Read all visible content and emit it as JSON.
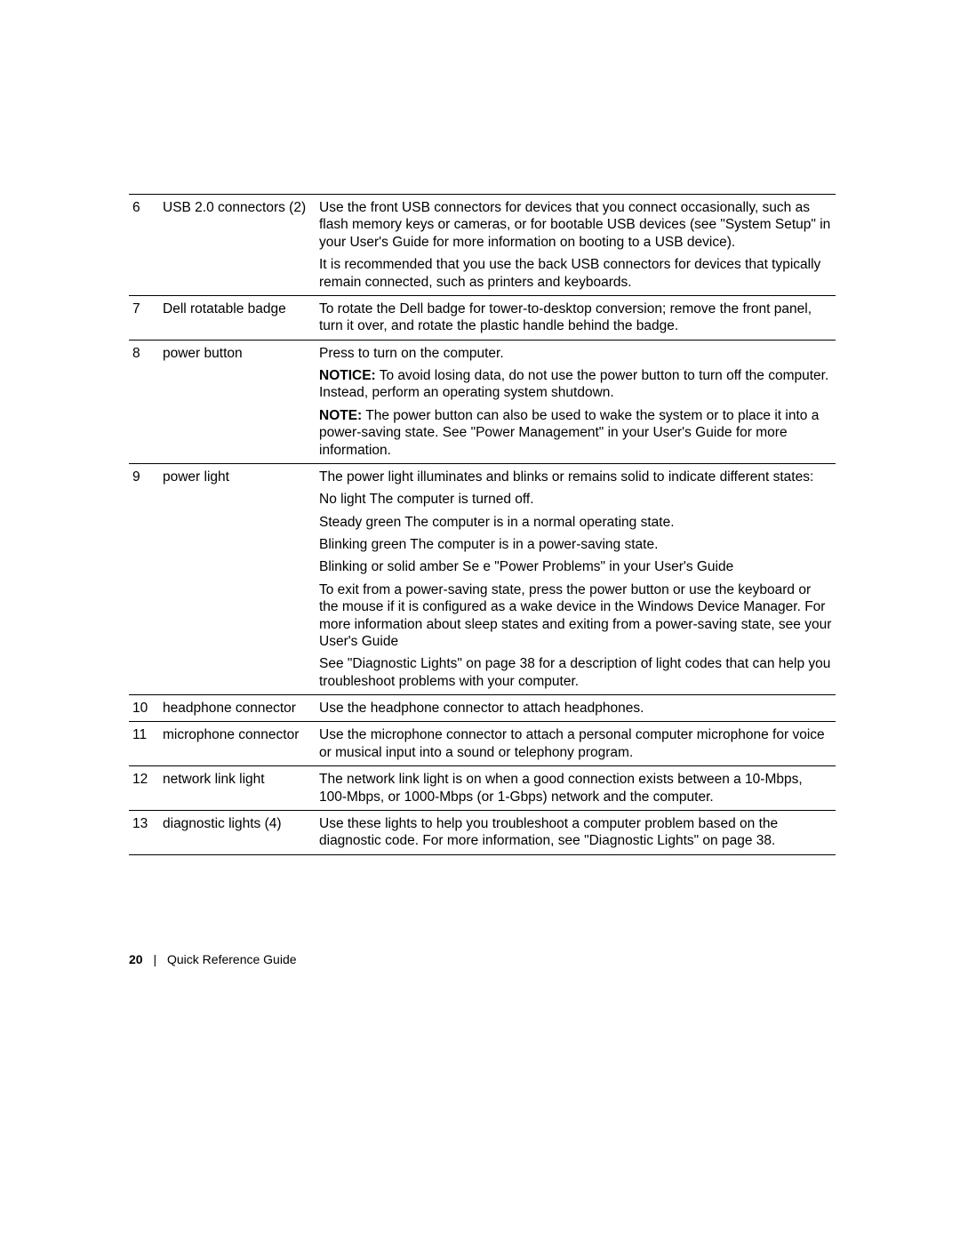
{
  "rows": [
    {
      "num": "6",
      "label": "USB 2.0 connectors (2)",
      "paras": [
        "Use the front USB connectors for devices that you connect occasionally, such as flash memory keys or cameras, or for bootable USB devices (see \"System Setup\" in your User's Guide for more information on booting to a USB device).",
        "It is recommended that you use the back USB connectors for devices that typically remain connected, such as printers and keyboards."
      ]
    },
    {
      "num": "7",
      "label": "Dell  rotatable badge",
      "paras": [
        "To rotate the Dell badge for tower-to-desktop conversion; remove the front panel, turn it over, and rotate the plastic handle behind the badge."
      ]
    },
    {
      "num": "8",
      "label": "power button",
      "paras": [
        "Press to turn on the computer.",
        {
          "prefix": "NOTICE:",
          "text": " To avoid losing data, do not use the power button to turn off the computer. Instead, perform an operating system shutdown."
        },
        {
          "prefix": "NOTE:",
          "text": " The power button can also be used to wake the system or to place it into a power-saving state. See \"Power Management\" in your User's Guide for more information."
        }
      ]
    },
    {
      "num": "9",
      "label": "power light",
      "paras": [
        "The power light illuminates and blinks or remains solid to indicate different states:",
        "No light   The computer is turned off.",
        "Steady green   The computer is in a normal operating state.",
        "Blinking green   The computer is in a power-saving state.",
        "Blinking or solid amber   Se e \"Power Problems\" in your User's Guide",
        "To exit from a power-saving state, press the power button or use the keyboard or the mouse if it is configured as a wake device in the Windows Device Manager. For more information about sleep states and exiting from a power-saving state, see your User's Guide",
        "See \"Diagnostic Lights\" on page 38 for a description of light codes that can help you troubleshoot problems with your computer."
      ]
    },
    {
      "num": "10",
      "label": "headphone connector",
      "paras": [
        "Use the headphone connector to attach headphones."
      ]
    },
    {
      "num": "11",
      "label": "microphone connector",
      "paras": [
        "Use the microphone connector to attach a personal computer microphone for voice or musical input into a sound or telephony program."
      ]
    },
    {
      "num": "12",
      "label": "network link light",
      "paras": [
        "The network link light is on when a good connection exists between a 10-Mbps, 100-Mbps, or 1000-Mbps (or 1-Gbps) network and the computer."
      ]
    },
    {
      "num": "13",
      "label": "diagnostic lights (4)",
      "paras": [
        "Use these lights to help you troubleshoot a computer problem based on the diagnostic code. For more information, see \"Diagnostic Lights\" on page 38."
      ]
    }
  ],
  "footer": {
    "page_number": "20",
    "separator": "|",
    "title": "Quick Reference Guide"
  }
}
